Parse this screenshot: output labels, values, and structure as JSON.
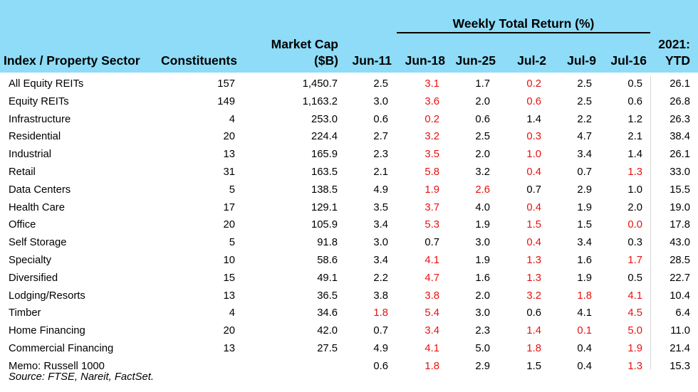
{
  "header": {
    "group_title": "Weekly Total Return (%)",
    "col_sector": "Index / Property Sector",
    "col_constituents": "Constituents",
    "col_marketcap_line1": "Market Cap",
    "col_marketcap_line2": "($B)",
    "col_weeks": [
      "Jun-11",
      "Jun-18",
      "Jun-25",
      "Jul-2",
      "Jul-9",
      "Jul-16"
    ],
    "col_ytd_line1": "2021:",
    "col_ytd_line2": "YTD"
  },
  "rows": [
    {
      "name": "All Equity REITs",
      "constituents": "157",
      "market_cap": "1,450.7",
      "weeks": [
        "2.5",
        "3.1",
        "1.7",
        "0.2",
        "2.5",
        "0.5"
      ],
      "red": [
        false,
        true,
        false,
        true,
        false,
        false
      ],
      "ytd": "26.1"
    },
    {
      "name": "Equity REITs",
      "constituents": "149",
      "market_cap": "1,163.2",
      "weeks": [
        "3.0",
        "3.6",
        "2.0",
        "0.6",
        "2.5",
        "0.6"
      ],
      "red": [
        false,
        true,
        false,
        true,
        false,
        false
      ],
      "ytd": "26.8"
    },
    {
      "name": "Infrastructure",
      "constituents": "4",
      "market_cap": "253.0",
      "weeks": [
        "0.6",
        "0.2",
        "0.6",
        "1.4",
        "2.2",
        "1.2"
      ],
      "red": [
        false,
        true,
        false,
        false,
        false,
        false
      ],
      "ytd": "26.3"
    },
    {
      "name": "Residential",
      "constituents": "20",
      "market_cap": "224.4",
      "weeks": [
        "2.7",
        "3.2",
        "2.5",
        "0.3",
        "4.7",
        "2.1"
      ],
      "red": [
        false,
        true,
        false,
        true,
        false,
        false
      ],
      "ytd": "38.4"
    },
    {
      "name": "Industrial",
      "constituents": "13",
      "market_cap": "165.9",
      "weeks": [
        "2.3",
        "3.5",
        "2.0",
        "1.0",
        "3.4",
        "1.4"
      ],
      "red": [
        false,
        true,
        false,
        true,
        false,
        false
      ],
      "ytd": "26.1"
    },
    {
      "name": "Retail",
      "constituents": "31",
      "market_cap": "163.5",
      "weeks": [
        "2.1",
        "5.8",
        "3.2",
        "0.4",
        "0.7",
        "1.3"
      ],
      "red": [
        false,
        true,
        false,
        true,
        false,
        true
      ],
      "ytd": "33.0"
    },
    {
      "name": "Data Centers",
      "constituents": "5",
      "market_cap": "138.5",
      "weeks": [
        "4.9",
        "1.9",
        "2.6",
        "0.7",
        "2.9",
        "1.0"
      ],
      "red": [
        false,
        true,
        true,
        false,
        false,
        false
      ],
      "ytd": "15.5"
    },
    {
      "name": "Health Care",
      "constituents": "17",
      "market_cap": "129.1",
      "weeks": [
        "3.5",
        "3.7",
        "4.0",
        "0.4",
        "1.9",
        "2.0"
      ],
      "red": [
        false,
        true,
        false,
        true,
        false,
        false
      ],
      "ytd": "19.0"
    },
    {
      "name": "Office",
      "constituents": "20",
      "market_cap": "105.9",
      "weeks": [
        "3.4",
        "5.3",
        "1.9",
        "1.5",
        "1.5",
        "0.0"
      ],
      "red": [
        false,
        true,
        false,
        true,
        false,
        true
      ],
      "ytd": "17.8"
    },
    {
      "name": "Self Storage",
      "constituents": "5",
      "market_cap": "91.8",
      "weeks": [
        "3.0",
        "0.7",
        "3.0",
        "0.4",
        "3.4",
        "0.3"
      ],
      "red": [
        false,
        false,
        false,
        true,
        false,
        false
      ],
      "ytd": "43.0"
    },
    {
      "name": "Specialty",
      "constituents": "10",
      "market_cap": "58.6",
      "weeks": [
        "3.4",
        "4.1",
        "1.9",
        "1.3",
        "1.6",
        "1.7"
      ],
      "red": [
        false,
        true,
        false,
        true,
        false,
        true
      ],
      "ytd": "28.5"
    },
    {
      "name": "Diversified",
      "constituents": "15",
      "market_cap": "49.1",
      "weeks": [
        "2.2",
        "4.7",
        "1.6",
        "1.3",
        "1.9",
        "0.5"
      ],
      "red": [
        false,
        true,
        false,
        true,
        false,
        false
      ],
      "ytd": "22.7"
    },
    {
      "name": "Lodging/Resorts",
      "constituents": "13",
      "market_cap": "36.5",
      "weeks": [
        "3.8",
        "3.8",
        "2.0",
        "3.2",
        "1.8",
        "4.1"
      ],
      "red": [
        false,
        true,
        false,
        true,
        true,
        true
      ],
      "ytd": "10.4"
    },
    {
      "name": "Timber",
      "constituents": "4",
      "market_cap": "34.6",
      "weeks": [
        "1.8",
        "5.4",
        "3.0",
        "0.6",
        "4.1",
        "4.5"
      ],
      "red": [
        true,
        true,
        false,
        false,
        false,
        true
      ],
      "ytd": "6.4"
    },
    {
      "name": "Home Financing",
      "constituents": "20",
      "market_cap": "42.0",
      "weeks": [
        "0.7",
        "3.4",
        "2.3",
        "1.4",
        "0.1",
        "5.0"
      ],
      "red": [
        false,
        true,
        false,
        true,
        true,
        true
      ],
      "ytd": "11.0"
    },
    {
      "name": "Commercial Financing",
      "constituents": "13",
      "market_cap": "27.5",
      "weeks": [
        "4.9",
        "4.1",
        "5.0",
        "1.8",
        "0.4",
        "1.9"
      ],
      "red": [
        false,
        true,
        false,
        true,
        false,
        true
      ],
      "ytd": "21.4"
    },
    {
      "name": "Memo: Russell 1000",
      "constituents": "",
      "market_cap": "",
      "weeks": [
        "0.6",
        "1.8",
        "2.9",
        "1.5",
        "0.4",
        "1.3"
      ],
      "red": [
        false,
        true,
        false,
        false,
        false,
        true
      ],
      "ytd": "15.3"
    }
  ],
  "source": "Source: FTSE, Nareit, FactSet.",
  "colors": {
    "header_bg": "#8edcf7",
    "negative": "#e8110e"
  }
}
